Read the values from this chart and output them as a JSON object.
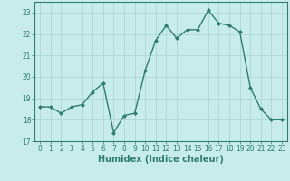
{
  "x": [
    0,
    1,
    2,
    3,
    4,
    5,
    6,
    7,
    8,
    9,
    10,
    11,
    12,
    13,
    14,
    15,
    16,
    17,
    18,
    19,
    20,
    21,
    22,
    23
  ],
  "y": [
    18.6,
    18.6,
    18.3,
    18.6,
    18.7,
    19.3,
    19.7,
    17.4,
    18.2,
    18.3,
    20.3,
    21.7,
    22.4,
    21.8,
    22.2,
    22.2,
    23.1,
    22.5,
    22.4,
    22.1,
    19.5,
    18.5,
    18.0,
    18.0
  ],
  "line_color": "#2e7d6e",
  "marker": "D",
  "marker_size": 2.0,
  "line_width": 1.0,
  "bg_color": "#c8ebeb",
  "grid_color": "#aad4d4",
  "xlabel": "Humidex (Indice chaleur)",
  "xlim": [
    -0.5,
    23.5
  ],
  "ylim": [
    17,
    23.5
  ],
  "yticks": [
    17,
    18,
    19,
    20,
    21,
    22,
    23
  ],
  "xticks": [
    0,
    1,
    2,
    3,
    4,
    5,
    6,
    7,
    8,
    9,
    10,
    11,
    12,
    13,
    14,
    15,
    16,
    17,
    18,
    19,
    20,
    21,
    22,
    23
  ],
  "tick_fontsize": 5.5,
  "xlabel_fontsize": 7.0
}
